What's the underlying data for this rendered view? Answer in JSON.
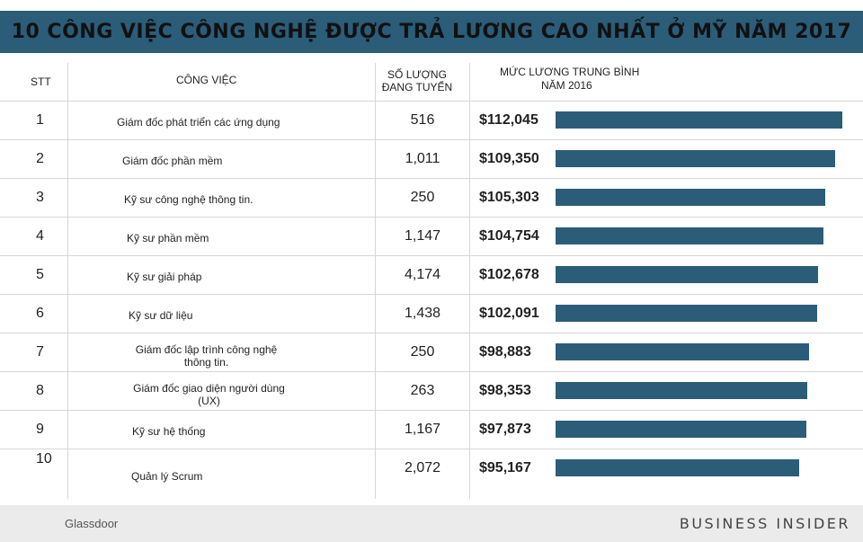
{
  "title": "10 CÔNG VIỆC CÔNG NGHỆ ĐƯỢC TRẢ LƯƠNG CAO NHẤT Ở MỸ NĂM 2017",
  "headers": {
    "stt": "STT",
    "job": "CÔNG VIỆC",
    "count_line1": "SỐ LƯỢNG",
    "count_line2": "ĐANG TUYỂN",
    "salary_line1": "MỨC LƯƠNG TRUNG BÌNH",
    "salary_line2": "NĂM 2016"
  },
  "footer": {
    "source": "Glassdoor",
    "brand": "BUSINESS INSIDER"
  },
  "colors": {
    "title_bar": "#2b5d79",
    "bar": "#2b5d79",
    "footer_bg": "#ebebeb"
  },
  "chart_data": {
    "type": "bar",
    "rows": [
      {
        "rank": "1",
        "job": "Giám đốc phát triển các ứng dụng",
        "openings": "516",
        "salary_label": "$112,045",
        "salary": 112045
      },
      {
        "rank": "2",
        "job": "Giám đốc phần mềm",
        "openings": "1,011",
        "salary_label": "$109,350",
        "salary": 109350
      },
      {
        "rank": "3",
        "job": "Kỹ sư công nghệ thông tin.",
        "openings": "250",
        "salary_label": "$105,303",
        "salary": 105303
      },
      {
        "rank": "4",
        "job": "Kỹ sư phần mềm",
        "openings": "1,147",
        "salary_label": "$104,754",
        "salary": 104754
      },
      {
        "rank": "5",
        "job": "Kỹ sư giải pháp",
        "openings": "4,174",
        "salary_label": "$102,678",
        "salary": 102678
      },
      {
        "rank": "6",
        "job": "Kỹ sư dữ liệu",
        "openings": "1,438",
        "salary_label": "$102,091",
        "salary": 102091
      },
      {
        "rank": "7",
        "job": "Giám đốc lập trình công nghệ thông tin.",
        "openings": "250",
        "salary_label": "$98,883",
        "salary": 98883
      },
      {
        "rank": "8",
        "job": "Giám đốc giao diện người dùng (UX)",
        "openings": "263",
        "salary_label": "$98,353",
        "salary": 98353
      },
      {
        "rank": "9",
        "job": "Kỹ sư hệ thống",
        "openings": "1,167",
        "salary_label": "$97,873",
        "salary": 97873
      },
      {
        "rank": "10",
        "job": "Quản lý Scrum",
        "openings": "2,072",
        "salary_label": "$95,167",
        "salary": 95167
      }
    ]
  }
}
